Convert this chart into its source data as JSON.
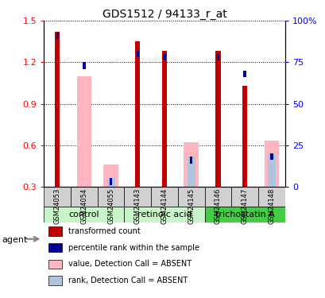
{
  "title": "GDS1512 / 94133_r_at",
  "samples": [
    "GSM24053",
    "GSM24054",
    "GSM24055",
    "GSM24143",
    "GSM24144",
    "GSM24145",
    "GSM24146",
    "GSM24147",
    "GSM24148"
  ],
  "group_info": [
    {
      "label": "control",
      "start": 0,
      "end": 2,
      "color": "#b2f0b2"
    },
    {
      "label": "retinoic acid",
      "start": 3,
      "end": 5,
      "color": "#b2f0b2"
    },
    {
      "label": "trichostatin A",
      "start": 6,
      "end": 8,
      "color": "#4cdd4c"
    }
  ],
  "red_bars": [
    1.42,
    null,
    null,
    1.35,
    1.28,
    null,
    1.28,
    1.03,
    null
  ],
  "blue_bars_pct": [
    93,
    75,
    5,
    82,
    80,
    18,
    80,
    70,
    20
  ],
  "pink_bars": [
    null,
    1.1,
    0.46,
    null,
    null,
    0.62,
    null,
    null,
    0.63
  ],
  "lightblue_pct": [
    null,
    null,
    5,
    null,
    null,
    18,
    null,
    null,
    20
  ],
  "absent": [
    false,
    true,
    true,
    false,
    false,
    true,
    false,
    false,
    true
  ],
  "ylim_left": [
    0.3,
    1.5
  ],
  "ylim_right": [
    0,
    100
  ],
  "yticks_left": [
    0.3,
    0.6,
    0.9,
    1.2,
    1.5
  ],
  "yticks_right": [
    0,
    25,
    50,
    75,
    100
  ],
  "ytick_labels_right": [
    "0",
    "25",
    "50",
    "75",
    "100%"
  ],
  "colors": {
    "red": "#C00000",
    "blue": "#000099",
    "pink": "#FFB6C1",
    "lightblue": "#B0C4DE",
    "sample_bg": "#D0D0D0",
    "group_bg_light": "#C8F5C8",
    "group_bg_dark": "#44CC44",
    "white": "#FFFFFF"
  },
  "legend": [
    {
      "label": "transformed count",
      "color": "#C00000"
    },
    {
      "label": "percentile rank within the sample",
      "color": "#000099"
    },
    {
      "label": "value, Detection Call = ABSENT",
      "color": "#FFB6C1"
    },
    {
      "label": "rank, Detection Call = ABSENT",
      "color": "#B0C4DE"
    }
  ]
}
